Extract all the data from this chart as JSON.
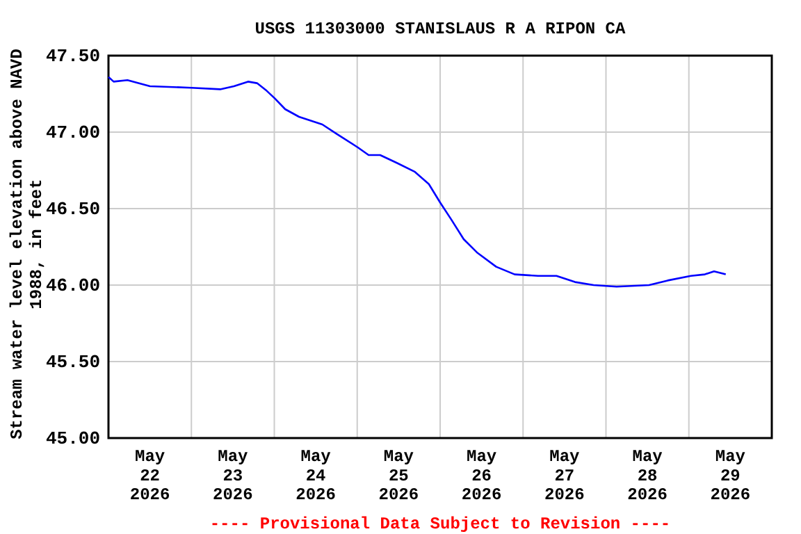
{
  "chart_data": {
    "type": "line",
    "title": "USGS 11303000 STANISLAUS R A RIPON CA",
    "ylabel": "Stream water level elevation above NAVD\n1988, in feet",
    "annotations": [
      "---- Provisional Data Subject to Revision ----"
    ],
    "xlim": [
      "2026-05-22T00:00",
      "2026-05-30T00:00"
    ],
    "xticks": [
      {
        "value": "2026-05-22T00:00",
        "label": null
      },
      {
        "value": "2026-05-22T12:00",
        "label": "May\n22\n2026"
      },
      {
        "value": "2026-05-23T00:00",
        "label": null
      },
      {
        "value": "2026-05-23T12:00",
        "label": "May\n23\n2026"
      },
      {
        "value": "2026-05-24T00:00",
        "label": null
      },
      {
        "value": "2026-05-24T12:00",
        "label": "May\n24\n2026"
      },
      {
        "value": "2026-05-25T00:00",
        "label": null
      },
      {
        "value": "2026-05-25T12:00",
        "label": "May\n25\n2026"
      },
      {
        "value": "2026-05-26T00:00",
        "label": null
      },
      {
        "value": "2026-05-26T12:00",
        "label": "May\n26\n2026"
      },
      {
        "value": "2026-05-27T00:00",
        "label": null
      },
      {
        "value": "2026-05-27T12:00",
        "label": "May\n27\n2026"
      },
      {
        "value": "2026-05-28T00:00",
        "label": null
      },
      {
        "value": "2026-05-28T12:00",
        "label": "May\n28\n2026"
      },
      {
        "value": "2026-05-29T00:00",
        "label": null
      },
      {
        "value": "2026-05-29T12:00",
        "label": "May\n29\n2026"
      },
      {
        "value": "2026-05-30T00:00",
        "label": null
      }
    ],
    "ylim": [
      45.0,
      47.5
    ],
    "yticks": [
      {
        "value": 45,
        "label": "45.00"
      },
      {
        "value": 45.5,
        "label": "45.50"
      },
      {
        "value": 46,
        "label": "46.00"
      },
      {
        "value": 46.5,
        "label": "46.50"
      },
      {
        "value": 47,
        "label": "47.00"
      },
      {
        "value": 47.5,
        "label": "47.50"
      }
    ],
    "grid": true,
    "marker": "none",
    "line_style": "solid",
    "series": [
      {
        "color": "#0000ff",
        "x": [
          "2026-05-22T00:00",
          "2026-05-22T01:30",
          "2026-05-22T05:30",
          "2026-05-22T12:00",
          "2026-05-23T00:00",
          "2026-05-23T08:20",
          "2026-05-23T12:20",
          "2026-05-23T16:24",
          "2026-05-23T19:00",
          "2026-05-23T21:48",
          "2026-05-24T00:10",
          "2026-05-24T03:08",
          "2026-05-24T07:10",
          "2026-05-24T13:54",
          "2026-05-24T17:55",
          "2026-05-25T00:10",
          "2026-05-25T03:18",
          "2026-05-25T06:38",
          "2026-05-25T11:21",
          "2026-05-25T16:42",
          "2026-05-25T20:44",
          "2026-05-26T00:00",
          "2026-05-26T03:11",
          "2026-05-26T06:49",
          "2026-05-26T10:50",
          "2026-05-26T16:13",
          "2026-05-26T21:34",
          "2026-05-27T04:19",
          "2026-05-27T09:40",
          "2026-05-27T15:01",
          "2026-05-27T20:25",
          "2026-05-28T03:05",
          "2026-05-28T12:29",
          "2026-05-28T17:52",
          "2026-05-29T00:36",
          "2026-05-29T04:38",
          "2026-05-29T07:17",
          "2026-05-29T10:40"
        ],
        "values": [
          47.36,
          47.33,
          47.34,
          47.3,
          47.29,
          47.28,
          47.3,
          47.33,
          47.32,
          47.27,
          47.22,
          47.15,
          47.1,
          47.05,
          46.99,
          46.9,
          46.85,
          46.85,
          46.8,
          46.74,
          46.66,
          46.54,
          46.43,
          46.3,
          46.21,
          46.12,
          46.07,
          46.06,
          46.06,
          46.02,
          46.0,
          45.99,
          46.0,
          46.03,
          46.06,
          46.07,
          46.09,
          46.07
        ]
      }
    ]
  }
}
